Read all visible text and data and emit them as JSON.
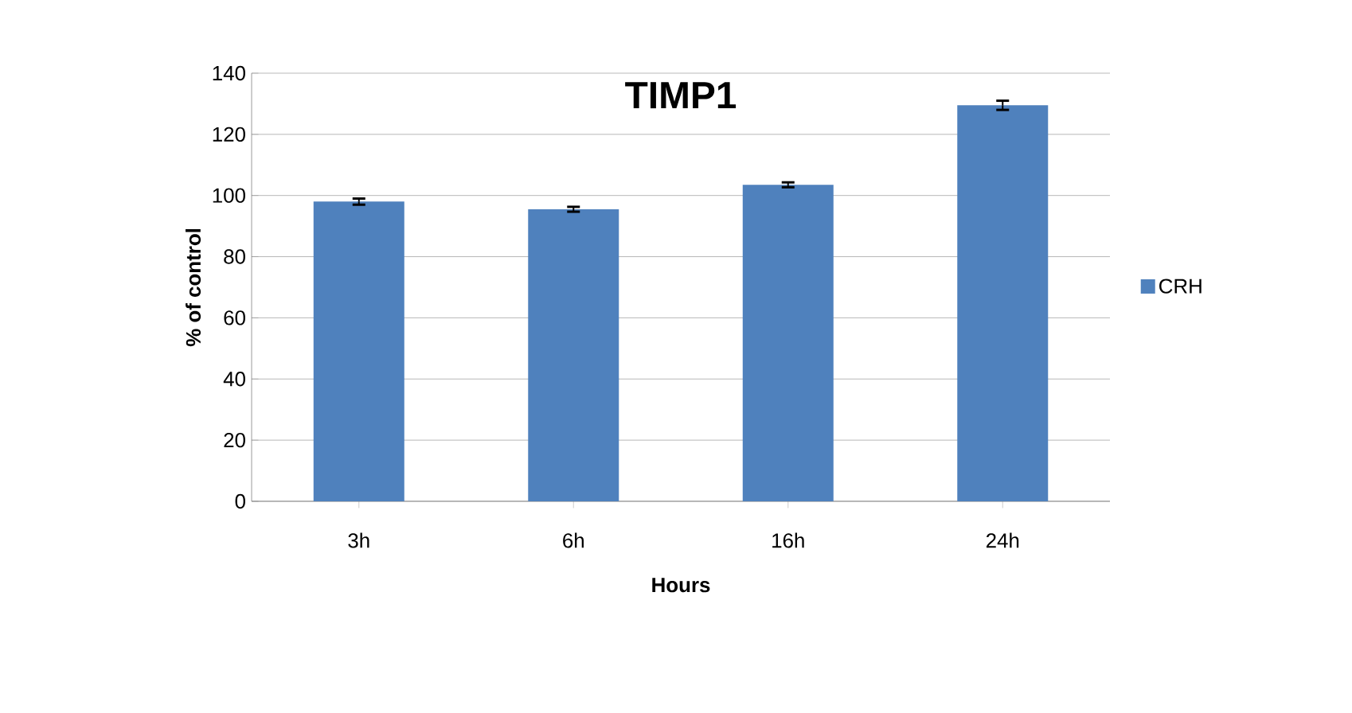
{
  "chart_data": {
    "type": "bar",
    "title": "TIMP1",
    "xlabel": "Hours",
    "ylabel": "% of control",
    "categories": [
      "3h",
      "6h",
      "16h",
      "24h"
    ],
    "series": [
      {
        "name": "CRH",
        "color": "#4f81bd",
        "values": [
          98,
          95.5,
          103.5,
          129.5
        ],
        "errors": [
          1,
          0.8,
          0.8,
          1.5
        ]
      }
    ],
    "ylim": [
      0,
      140
    ],
    "yticks": [
      0,
      20,
      40,
      60,
      80,
      100,
      120,
      140
    ],
    "grid": "y",
    "legend": "right"
  }
}
